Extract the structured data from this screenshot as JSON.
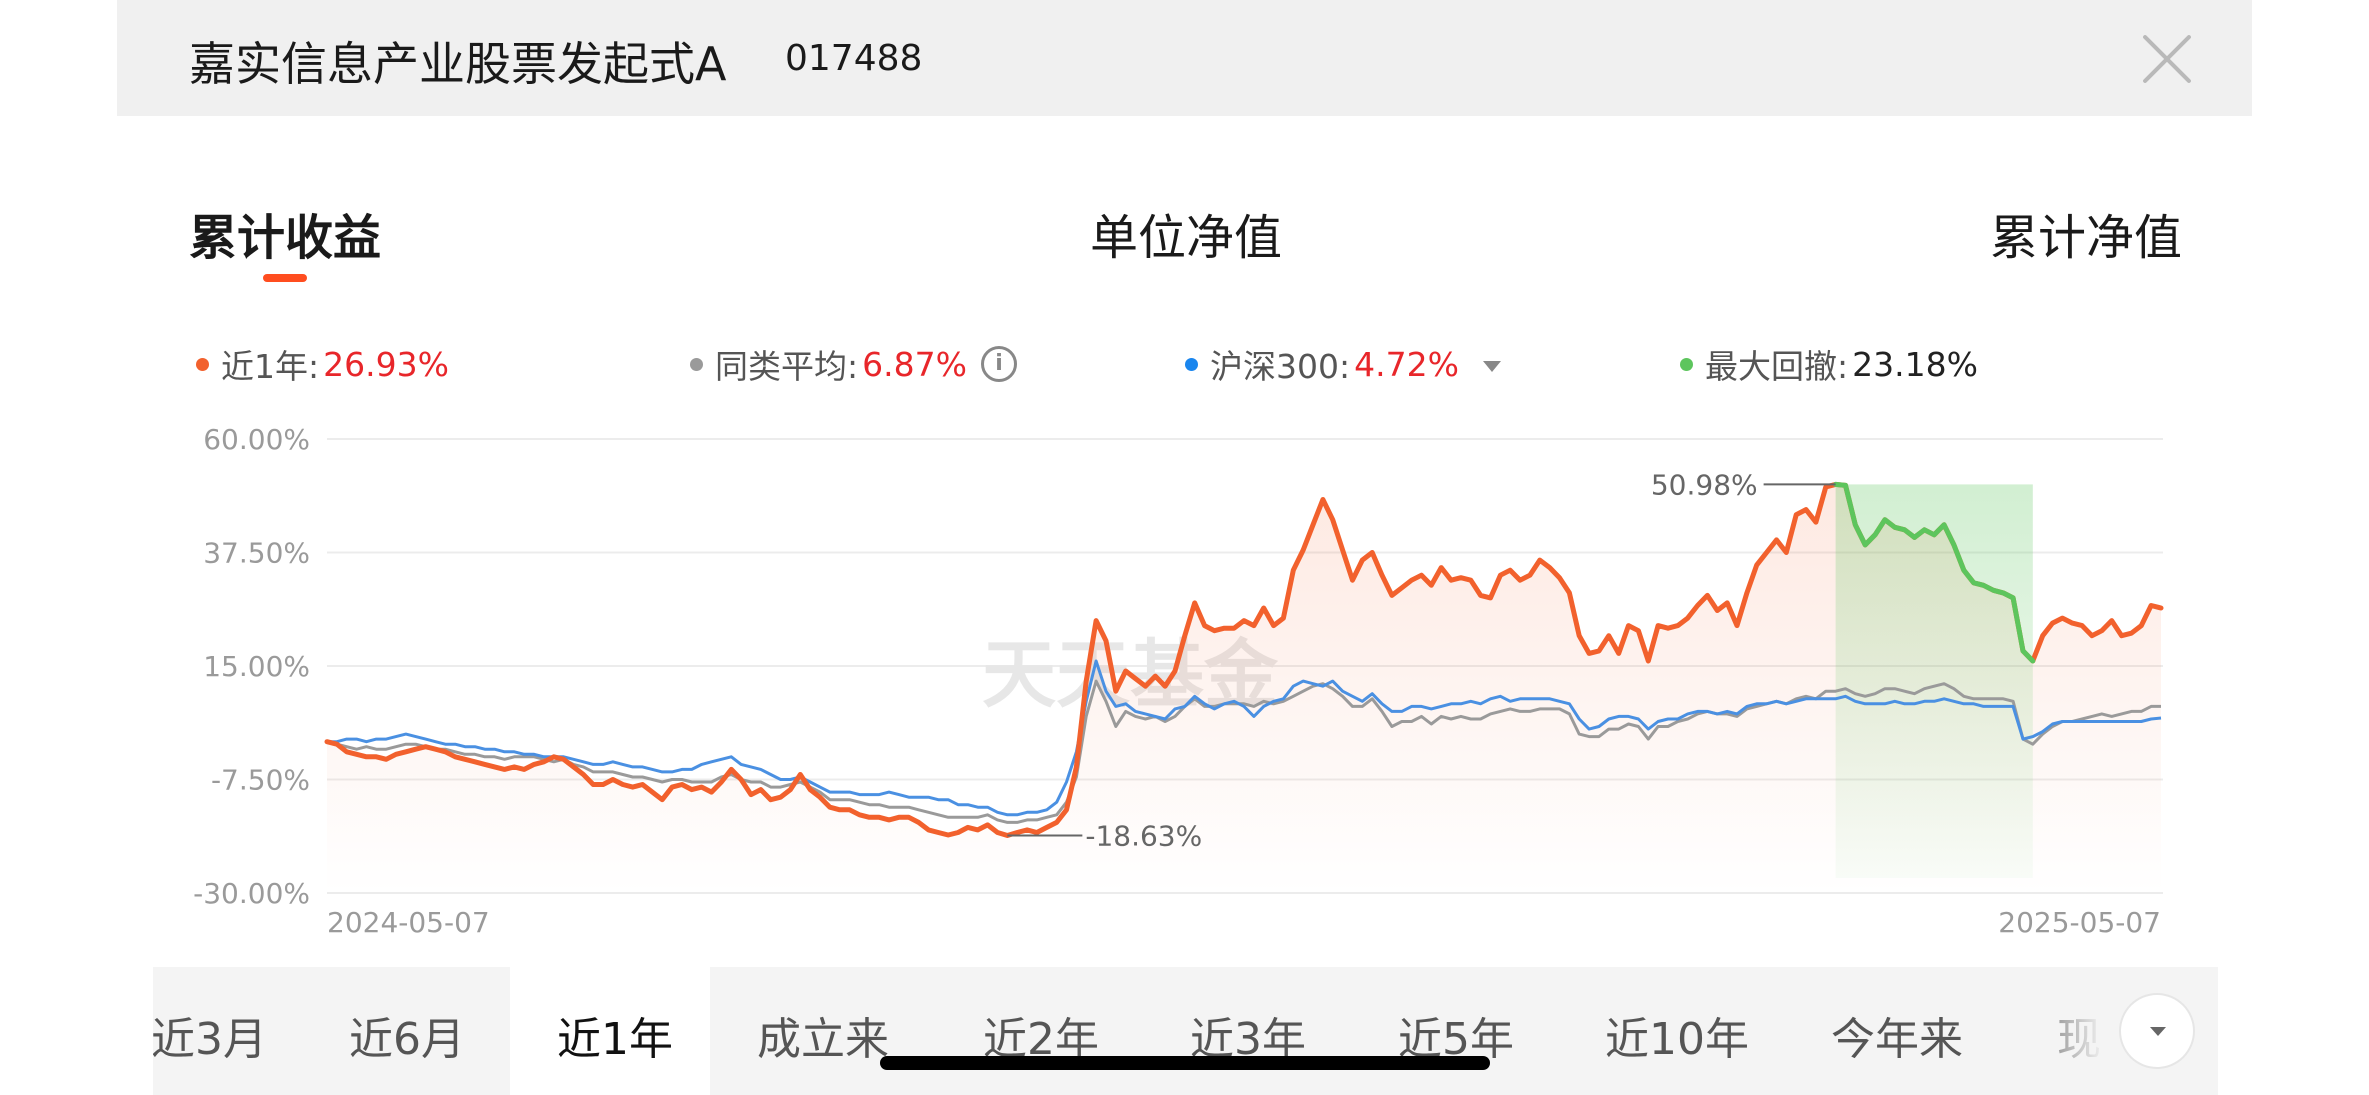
{
  "header": {
    "fund_name": "嘉实信息产业股票发起式A",
    "fund_code": "017488"
  },
  "tabs": [
    {
      "label": "累计收益",
      "active": true
    },
    {
      "label": "单位净值",
      "active": false
    },
    {
      "label": "累计净值",
      "active": false
    }
  ],
  "legend": {
    "fund": {
      "label": "近1年:",
      "value": "26.93%",
      "color": "#f2612d"
    },
    "peer": {
      "label": "同类平均:",
      "value": "6.87%",
      "color": "#9a9a9a",
      "icon": "info-icon"
    },
    "index": {
      "label": "沪深300:",
      "value": "4.72%",
      "color": "#1a86ee",
      "icon": "caret-down-icon"
    },
    "drawdown": {
      "label": "最大回撤:",
      "value": "23.18%",
      "color": "#5dc55d"
    }
  },
  "chart_data": {
    "type": "line",
    "x_range": [
      "2024-05-07",
      "2025-05-07"
    ],
    "xticks": [
      "2024-05-07",
      "2025-05-07"
    ],
    "yticks": [
      "60.00%",
      "37.50%",
      "15.00%",
      "-7.50%",
      "-30.00%"
    ],
    "ylim": [
      -30,
      60
    ],
    "grid": true,
    "watermark": "天天基金",
    "annotations": [
      {
        "label": "50.98%",
        "type": "max",
        "series": "fund"
      },
      {
        "label": "-18.63%",
        "type": "min",
        "series": "fund"
      }
    ],
    "drawdown_period": {
      "series": "fund",
      "peak": 50.98,
      "trough": 16.0,
      "value": "23.18%"
    },
    "series": [
      {
        "key": "fund",
        "color": "#f2612d",
        "values": [
          0.0,
          -0.5,
          -2.0,
          -2.5,
          -3.0,
          -3.0,
          -3.5,
          -2.5,
          -2.0,
          -1.5,
          -1.0,
          -1.5,
          -2.0,
          -3.0,
          -3.5,
          -4.0,
          -4.5,
          -5.0,
          -5.5,
          -5.0,
          -5.5,
          -4.5,
          -4.0,
          -3.0,
          -3.5,
          -5.0,
          -6.5,
          -8.5,
          -8.5,
          -7.5,
          -8.5,
          -9.0,
          -8.5,
          -10.0,
          -11.5,
          -9.0,
          -8.5,
          -9.5,
          -9.0,
          -10.0,
          -8.0,
          -5.5,
          -7.5,
          -10.5,
          -9.5,
          -11.5,
          -11.0,
          -9.5,
          -6.5,
          -9.5,
          -11.0,
          -13.0,
          -13.5,
          -13.5,
          -14.5,
          -15.0,
          -15.0,
          -15.5,
          -15.0,
          -15.0,
          -16.0,
          -17.5,
          -18.0,
          -18.5,
          -18.0,
          -17.0,
          -17.5,
          -16.5,
          -18.0,
          -18.6,
          -18.0,
          -17.5,
          -18.0,
          -17.0,
          -16.0,
          -13.5,
          -5.0,
          12.0,
          24.0,
          20.0,
          10.0,
          14.0,
          12.5,
          11.0,
          13.0,
          11.0,
          14.0,
          21.0,
          27.5,
          23.0,
          22.0,
          22.5,
          22.5,
          24.0,
          23.0,
          26.5,
          23.0,
          24.5,
          34.0,
          38.0,
          43.0,
          48.0,
          44.0,
          38.0,
          32.0,
          36.0,
          37.5,
          33.0,
          29.0,
          30.5,
          32.0,
          33.0,
          31.0,
          34.5,
          32.0,
          32.5,
          32.0,
          29.0,
          28.5,
          33.0,
          34.0,
          32.0,
          33.0,
          36.0,
          34.5,
          32.5,
          29.5,
          21.0,
          17.5,
          18.0,
          21.0,
          17.5,
          23.0,
          22.0,
          16.0,
          23.0,
          22.5,
          23.0,
          24.5,
          27.0,
          29.0,
          26.0,
          27.5,
          23.0,
          29.5,
          35.0,
          37.5,
          40.0,
          37.5,
          45.0,
          46.0,
          43.5,
          50.5,
          51.0,
          50.8,
          43.0,
          39.0,
          41.0,
          44.0,
          42.5,
          42.0,
          40.5,
          42.0,
          41.0,
          43.0,
          39.0,
          34.0,
          31.5,
          31.0,
          30.0,
          29.5,
          28.5,
          18.0,
          16.0,
          21.0,
          23.5,
          24.5,
          23.5,
          23.0,
          21.0,
          22.0,
          24.0,
          21.0,
          21.5,
          23.0,
          27.0,
          26.5
        ]
      },
      {
        "key": "peer",
        "color": "#9a9a9a",
        "values": [
          0.0,
          -0.5,
          -1.0,
          -1.5,
          -1.0,
          -1.5,
          -1.5,
          -1.0,
          -0.5,
          -0.5,
          -1.0,
          -1.5,
          -1.5,
          -2.0,
          -2.5,
          -2.5,
          -3.0,
          -3.0,
          -3.5,
          -3.0,
          -3.0,
          -3.0,
          -3.5,
          -4.0,
          -3.5,
          -4.5,
          -5.0,
          -6.0,
          -6.0,
          -6.0,
          -6.5,
          -7.0,
          -7.0,
          -7.5,
          -8.0,
          -7.5,
          -7.5,
          -8.0,
          -8.0,
          -8.0,
          -7.0,
          -6.5,
          -7.5,
          -8.0,
          -8.0,
          -9.0,
          -9.0,
          -8.5,
          -8.0,
          -9.0,
          -10.0,
          -11.5,
          -11.5,
          -11.5,
          -12.0,
          -12.5,
          -12.5,
          -13.0,
          -13.0,
          -13.0,
          -13.5,
          -14.0,
          -14.5,
          -15.0,
          -15.0,
          -15.0,
          -15.0,
          -14.5,
          -15.5,
          -16.0,
          -16.0,
          -15.5,
          -15.5,
          -15.0,
          -14.5,
          -12.0,
          -7.0,
          5.0,
          12.0,
          8.0,
          3.0,
          6.0,
          5.0,
          4.5,
          5.0,
          4.0,
          5.0,
          7.0,
          8.5,
          7.0,
          7.0,
          7.5,
          7.5,
          7.5,
          7.0,
          8.0,
          7.5,
          8.0,
          9.0,
          10.0,
          11.0,
          11.5,
          10.5,
          9.0,
          7.0,
          7.0,
          8.5,
          6.0,
          3.0,
          4.0,
          4.0,
          5.0,
          3.5,
          5.0,
          4.5,
          5.0,
          4.5,
          4.5,
          5.5,
          6.0,
          6.5,
          6.0,
          6.0,
          6.5,
          6.5,
          6.5,
          5.5,
          1.5,
          1.0,
          1.0,
          2.5,
          2.5,
          3.5,
          3.0,
          0.5,
          3.0,
          3.0,
          4.0,
          4.5,
          5.5,
          6.0,
          5.5,
          5.5,
          5.0,
          6.5,
          7.0,
          7.5,
          8.0,
          7.5,
          8.5,
          9.0,
          8.5,
          10.0,
          10.0,
          10.5,
          9.5,
          9.0,
          9.5,
          10.5,
          10.5,
          10.0,
          9.5,
          10.5,
          11.0,
          11.5,
          10.5,
          9.0,
          8.5,
          8.5,
          8.5,
          8.5,
          8.0,
          0.5,
          -0.5,
          1.5,
          3.0,
          4.0,
          4.0,
          4.5,
          5.0,
          5.5,
          5.0,
          5.5,
          6.0,
          6.0,
          7.0,
          7.0
        ]
      },
      {
        "key": "index",
        "color": "#1a86ee",
        "values": [
          0.0,
          0.0,
          0.5,
          0.5,
          0.0,
          0.5,
          0.5,
          1.0,
          1.5,
          1.0,
          0.5,
          0.0,
          -0.5,
          -0.5,
          -1.0,
          -1.0,
          -1.5,
          -1.5,
          -2.0,
          -2.0,
          -2.5,
          -2.5,
          -3.0,
          -3.0,
          -3.0,
          -3.5,
          -4.0,
          -4.5,
          -4.5,
          -4.0,
          -4.5,
          -5.0,
          -5.0,
          -5.5,
          -6.0,
          -6.0,
          -5.5,
          -5.5,
          -4.5,
          -4.0,
          -3.5,
          -3.0,
          -4.5,
          -5.0,
          -5.5,
          -6.5,
          -7.5,
          -7.5,
          -7.0,
          -8.0,
          -9.0,
          -10.0,
          -10.0,
          -10.0,
          -10.5,
          -10.5,
          -10.5,
          -10.0,
          -10.5,
          -11.0,
          -11.0,
          -11.0,
          -11.5,
          -11.5,
          -12.5,
          -12.5,
          -13.0,
          -13.0,
          -14.0,
          -14.5,
          -14.5,
          -14.0,
          -14.0,
          -13.5,
          -12.0,
          -8.0,
          -2.0,
          8.0,
          16.0,
          10.0,
          7.0,
          7.5,
          6.0,
          5.5,
          5.0,
          4.5,
          6.5,
          7.0,
          9.0,
          7.5,
          6.5,
          7.5,
          8.0,
          7.0,
          5.0,
          7.0,
          8.0,
          8.5,
          11.0,
          12.0,
          11.5,
          11.0,
          12.0,
          10.0,
          9.0,
          8.0,
          9.5,
          7.5,
          6.0,
          6.0,
          7.0,
          7.0,
          6.5,
          7.0,
          7.5,
          7.5,
          8.0,
          7.5,
          8.5,
          9.0,
          8.0,
          8.5,
          8.5,
          8.5,
          8.5,
          8.0,
          7.5,
          4.5,
          2.5,
          3.0,
          4.5,
          5.0,
          5.0,
          4.5,
          2.5,
          4.0,
          4.5,
          4.5,
          5.5,
          6.0,
          6.0,
          5.5,
          6.0,
          5.5,
          7.0,
          7.5,
          7.5,
          8.0,
          7.5,
          8.0,
          8.5,
          8.5,
          8.5,
          8.5,
          9.0,
          8.0,
          7.5,
          7.5,
          7.5,
          8.0,
          7.5,
          7.5,
          8.0,
          8.0,
          8.5,
          8.0,
          7.5,
          7.5,
          7.0,
          7.0,
          7.0,
          7.0,
          0.5,
          1.0,
          2.0,
          3.5,
          4.0,
          4.0,
          4.0,
          4.0,
          4.0,
          4.0,
          4.0,
          4.0,
          4.0,
          4.5,
          4.7
        ]
      }
    ]
  },
  "ranges": [
    {
      "label": "近3月",
      "active": false
    },
    {
      "label": "近6月",
      "active": false
    },
    {
      "label": "近1年",
      "active": true
    },
    {
      "label": "成立来",
      "active": false
    },
    {
      "label": "近2年",
      "active": false
    },
    {
      "label": "近3年",
      "active": false
    },
    {
      "label": "近5年",
      "active": false
    },
    {
      "label": "近10年",
      "active": false
    },
    {
      "label": "今年来",
      "active": false
    },
    {
      "label": "现",
      "active": false
    }
  ],
  "more_icon": "chevron-down-icon"
}
